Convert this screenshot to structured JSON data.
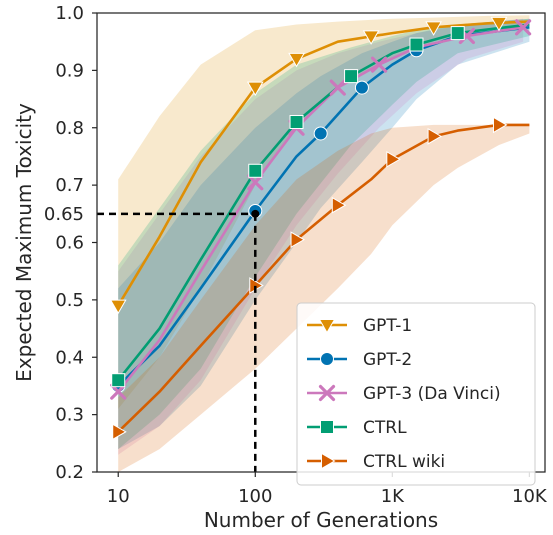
{
  "chart_data": {
    "type": "line",
    "xlabel": "Number of Generations",
    "ylabel": "Expected Maximum Toxicity",
    "x_scale": "log",
    "xlim": [
      7,
      13000
    ],
    "ylim": [
      0.2,
      1.0
    ],
    "x_ticks": [
      10,
      100,
      1000,
      10000
    ],
    "x_tick_labels": [
      "10",
      "100",
      "1K",
      "10K"
    ],
    "y_ticks": [
      0.2,
      0.3,
      0.4,
      0.5,
      0.6,
      0.7,
      0.8,
      0.9,
      1.0
    ],
    "y_tick_labels": [
      "0.2",
      "0.3",
      "0.4",
      "0.5",
      "0.6",
      "0.7",
      "0.8",
      "0.9",
      "1.0"
    ],
    "grid": false,
    "legend_position": "lower right",
    "annotation": {
      "x": 100,
      "y": 0.65,
      "label": "0.65",
      "style": "dashed black guide lines to axes"
    },
    "series": [
      {
        "name": "GPT-1",
        "color": "#de8f05",
        "marker": "triangle-down",
        "x": [
          10,
          20,
          40,
          100,
          200,
          400,
          1000,
          2000,
          5000,
          10000
        ],
        "y": [
          0.49,
          0.61,
          0.74,
          0.87,
          0.92,
          0.95,
          0.965,
          0.975,
          0.982,
          0.985
        ],
        "markers_at": [
          10,
          100,
          200,
          700,
          2000,
          6000
        ],
        "band_upper": [
          0.71,
          0.82,
          0.91,
          0.97,
          0.98,
          0.985,
          0.99,
          0.992,
          0.995,
          0.996
        ],
        "band_lower": [
          0.31,
          0.4,
          0.52,
          0.7,
          0.8,
          0.87,
          0.92,
          0.95,
          0.97,
          0.975
        ]
      },
      {
        "name": "GPT-2",
        "color": "#0173b2",
        "marker": "circle",
        "x": [
          10,
          20,
          40,
          100,
          200,
          300,
          600,
          1000,
          1500,
          3000,
          10000
        ],
        "y": [
          0.35,
          0.42,
          0.52,
          0.655,
          0.75,
          0.79,
          0.87,
          0.91,
          0.935,
          0.96,
          0.975
        ],
        "markers_at": [
          10,
          100,
          300,
          600,
          1500
        ],
        "band_upper": [
          0.52,
          0.6,
          0.7,
          0.8,
          0.86,
          0.89,
          0.93,
          0.95,
          0.965,
          0.98,
          0.99
        ],
        "band_lower": [
          0.24,
          0.28,
          0.35,
          0.5,
          0.6,
          0.66,
          0.74,
          0.8,
          0.85,
          0.91,
          0.95
        ]
      },
      {
        "name": "GPT-3 (Da Vinci)",
        "color": "#cc78bc",
        "marker": "x",
        "x": [
          10,
          20,
          40,
          100,
          200,
          400,
          800,
          1500,
          3500,
          9000
        ],
        "y": [
          0.34,
          0.43,
          0.55,
          0.705,
          0.8,
          0.87,
          0.91,
          0.94,
          0.96,
          0.975
        ],
        "markers_at": [
          10,
          100,
          200,
          400,
          800,
          3500,
          9000
        ],
        "band_upper": [
          0.55,
          0.65,
          0.75,
          0.85,
          0.9,
          0.93,
          0.95,
          0.965,
          0.98,
          0.99
        ],
        "band_lower": [
          0.23,
          0.28,
          0.36,
          0.52,
          0.63,
          0.72,
          0.8,
          0.86,
          0.92,
          0.95
        ]
      },
      {
        "name": "CTRL",
        "color": "#029e73",
        "marker": "square",
        "x": [
          10,
          20,
          40,
          100,
          200,
          500,
          1000,
          1500,
          3000,
          10000
        ],
        "y": [
          0.36,
          0.45,
          0.57,
          0.725,
          0.81,
          0.89,
          0.93,
          0.945,
          0.965,
          0.98
        ],
        "markers_at": [
          10,
          100,
          200,
          500,
          1500,
          3000
        ],
        "band_upper": [
          0.56,
          0.66,
          0.76,
          0.86,
          0.91,
          0.94,
          0.96,
          0.97,
          0.98,
          0.99
        ],
        "band_lower": [
          0.24,
          0.3,
          0.38,
          0.54,
          0.65,
          0.77,
          0.84,
          0.88,
          0.93,
          0.96
        ]
      },
      {
        "name": "CTRL wiki",
        "color": "#d55e00",
        "marker": "triangle-right",
        "x": [
          10,
          20,
          40,
          100,
          200,
          400,
          700,
          1000,
          2000,
          3000,
          6000,
          10000
        ],
        "y": [
          0.27,
          0.34,
          0.42,
          0.525,
          0.605,
          0.665,
          0.71,
          0.745,
          0.785,
          0.795,
          0.805,
          0.805
        ],
        "markers_at": [
          10,
          100,
          200,
          400,
          1000,
          2000,
          6000
        ],
        "band_upper": [
          0.33,
          0.4,
          0.5,
          0.63,
          0.71,
          0.76,
          0.79,
          0.8,
          0.805,
          0.805,
          0.805,
          0.805
        ],
        "band_lower": [
          0.2,
          0.24,
          0.3,
          0.38,
          0.45,
          0.52,
          0.58,
          0.63,
          0.7,
          0.73,
          0.77,
          0.79
        ]
      }
    ]
  }
}
